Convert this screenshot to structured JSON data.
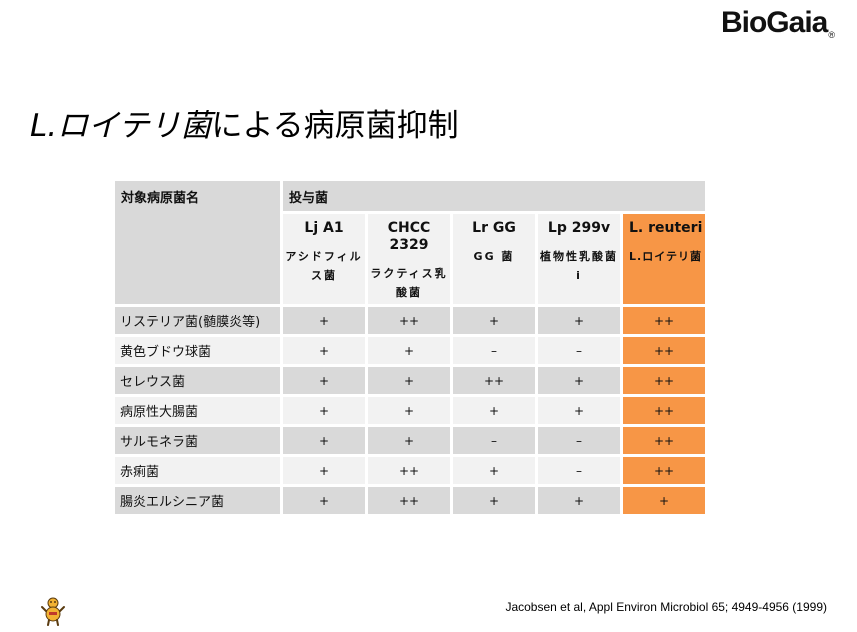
{
  "brand": {
    "logo_text": "BioGaia",
    "logo_mark": "®"
  },
  "slide": {
    "title_italic": "L.ロイテリ菌",
    "title_rest": "による病原菌抑制"
  },
  "table": {
    "corner_header": "対象病原菌名",
    "group_header": "投与菌",
    "columns": [
      {
        "name": "Lj A1",
        "jp": "アシドフィルス菌",
        "highlight": false
      },
      {
        "name": "CHCC 2329",
        "jp": "ラクティス乳酸菌",
        "highlight": false
      },
      {
        "name": "Lr GG",
        "jp": "GG 菌",
        "highlight": false
      },
      {
        "name": "Lp 299v",
        "jp": "植物性乳酸菌 i",
        "highlight": false
      },
      {
        "name": "L. reuteri",
        "jp": "L.ロイテリ菌",
        "highlight": true
      }
    ],
    "rows": [
      {
        "label": "リステリア菌(髄膜炎等)",
        "values": [
          "+",
          "++",
          "+",
          "+",
          "++"
        ]
      },
      {
        "label": "黄色ブドウ球菌",
        "values": [
          "+",
          "+",
          "–",
          "–",
          "++"
        ]
      },
      {
        "label": "セレウス菌",
        "values": [
          "+",
          "+",
          "++",
          "+",
          "++"
        ]
      },
      {
        "label": "病原性大腸菌",
        "values": [
          "+",
          "+",
          "+",
          "+",
          "++"
        ]
      },
      {
        "label": "サルモネラ菌",
        "values": [
          "+",
          "+",
          "–",
          "–",
          "++"
        ]
      },
      {
        "label": "赤痢菌",
        "values": [
          "+",
          "++",
          "+",
          "–",
          "++"
        ]
      },
      {
        "label": "腸炎エルシニア菌",
        "values": [
          "+",
          "++",
          "+",
          "+",
          "+"
        ]
      }
    ]
  },
  "citation": "Jacobsen et al, Appl Environ Microbiol 65; 4949-4956 (1999)",
  "colors": {
    "highlight": "#f79646",
    "header_gray": "#d9d9d9",
    "row_light": "#f2f2f2"
  }
}
